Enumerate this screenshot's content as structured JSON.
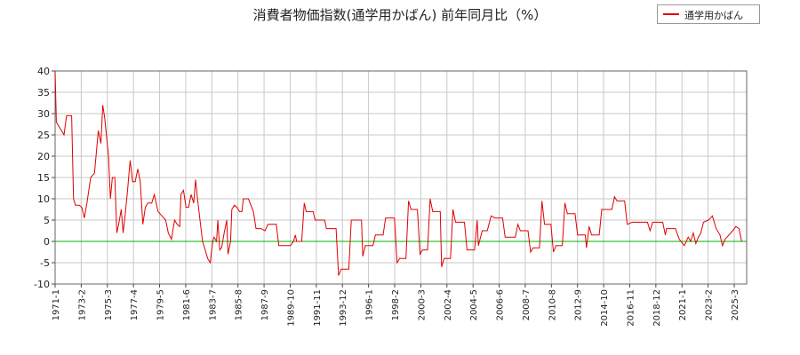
{
  "chart_data": {
    "type": "line",
    "title": "消費者物価指数(通学用かばん) 前年同月比（%）",
    "xlabel": "",
    "ylabel": "",
    "ylim": [
      -10,
      40
    ],
    "y_ticks": [
      "40",
      "35",
      "30",
      "25",
      "20",
      "15",
      "10",
      "5",
      "0",
      "-5",
      "-10"
    ],
    "x_ticks": [
      "1971-1",
      "1973-2",
      "1975-3",
      "1977-4",
      "1979-5",
      "1981-6",
      "1983-7",
      "1985-8",
      "1987-9",
      "1989-10",
      "1991-11",
      "1993-12",
      "1996-1",
      "1998-2",
      "2000-3",
      "2002-4",
      "2004-5",
      "2006-6",
      "2008-7",
      "2010-8",
      "2012-9",
      "2014-10",
      "2016-11",
      "2018-12",
      "2021-1",
      "2023-2",
      "2025-3"
    ],
    "grid": true,
    "legend_position": "top-right",
    "reference_line": {
      "y": 0,
      "color": "#00b000"
    },
    "series": [
      {
        "name": "通学用かばん",
        "color": "#e00000",
        "points": [
          [
            1971.0,
            40
          ],
          [
            1971.1,
            28
          ],
          [
            1971.3,
            27
          ],
          [
            1971.5,
            26
          ],
          [
            1971.7,
            25
          ],
          [
            1971.9,
            29.5
          ],
          [
            1972.3,
            29.5
          ],
          [
            1972.45,
            10
          ],
          [
            1972.6,
            8.5
          ],
          [
            1972.9,
            8.5
          ],
          [
            1973.1,
            8
          ],
          [
            1973.3,
            5.5
          ],
          [
            1973.5,
            9
          ],
          [
            1973.8,
            15
          ],
          [
            1974.1,
            16
          ],
          [
            1974.4,
            26
          ],
          [
            1974.6,
            23
          ],
          [
            1974.75,
            32
          ],
          [
            1974.9,
            29
          ],
          [
            1975.0,
            26
          ],
          [
            1975.2,
            20
          ],
          [
            1975.35,
            10
          ],
          [
            1975.5,
            15
          ],
          [
            1975.7,
            15
          ],
          [
            1975.85,
            2
          ],
          [
            1976.0,
            4
          ],
          [
            1976.2,
            7.5
          ],
          [
            1976.35,
            2
          ],
          [
            1976.5,
            6
          ],
          [
            1976.7,
            12
          ],
          [
            1976.9,
            19
          ],
          [
            1977.1,
            14
          ],
          [
            1977.3,
            14
          ],
          [
            1977.5,
            17
          ],
          [
            1977.7,
            14
          ],
          [
            1977.9,
            4
          ],
          [
            1978.1,
            8
          ],
          [
            1978.3,
            9
          ],
          [
            1978.6,
            9
          ],
          [
            1978.8,
            11
          ],
          [
            1979.1,
            7
          ],
          [
            1979.4,
            6
          ],
          [
            1979.7,
            5
          ],
          [
            1979.9,
            2
          ],
          [
            1980.15,
            0.5
          ],
          [
            1980.4,
            5
          ],
          [
            1980.6,
            4
          ],
          [
            1980.8,
            3.5
          ],
          [
            1980.9,
            11
          ],
          [
            1981.1,
            12
          ],
          [
            1981.3,
            8
          ],
          [
            1981.5,
            8
          ],
          [
            1981.7,
            11
          ],
          [
            1981.9,
            9
          ],
          [
            1982.05,
            14.5
          ],
          [
            1982.2,
            10
          ],
          [
            1982.4,
            5
          ],
          [
            1982.6,
            0
          ],
          [
            1982.8,
            -2
          ],
          [
            1983.0,
            -4
          ],
          [
            1983.2,
            -5
          ],
          [
            1983.4,
            0
          ],
          [
            1983.5,
            1
          ],
          [
            1983.7,
            0
          ],
          [
            1983.8,
            5
          ],
          [
            1983.95,
            -2
          ],
          [
            1984.1,
            -1.5
          ],
          [
            1984.3,
            2
          ],
          [
            1984.5,
            5
          ],
          [
            1984.6,
            -3
          ],
          [
            1984.8,
            0
          ],
          [
            1984.9,
            7.5
          ],
          [
            1985.1,
            8.5
          ],
          [
            1985.3,
            8
          ],
          [
            1985.5,
            7
          ],
          [
            1985.7,
            7
          ],
          [
            1985.8,
            10
          ],
          [
            1986.2,
            10
          ],
          [
            1986.6,
            7
          ],
          [
            1986.8,
            3
          ],
          [
            1987.0,
            3
          ],
          [
            1987.2,
            3
          ],
          [
            1987.5,
            2.5
          ],
          [
            1987.75,
            4
          ],
          [
            1988.4,
            4
          ],
          [
            1988.6,
            -1
          ],
          [
            1989.0,
            -1
          ],
          [
            1989.5,
            -1
          ],
          [
            1989.75,
            0
          ],
          [
            1989.9,
            1.5
          ],
          [
            1990.0,
            0
          ],
          [
            1990.4,
            0
          ],
          [
            1990.6,
            9
          ],
          [
            1990.75,
            7
          ],
          [
            1991.3,
            7
          ],
          [
            1991.45,
            5
          ],
          [
            1992.2,
            5
          ],
          [
            1992.35,
            3
          ],
          [
            1993.1,
            3
          ],
          [
            1993.3,
            -8
          ],
          [
            1993.5,
            -6.5
          ],
          [
            1994.1,
            -6.5
          ],
          [
            1994.3,
            5
          ],
          [
            1994.6,
            5
          ],
          [
            1995.1,
            5
          ],
          [
            1995.2,
            -3.5
          ],
          [
            1995.4,
            -1
          ],
          [
            1995.6,
            -1
          ],
          [
            1996.0,
            -1
          ],
          [
            1996.2,
            1.5
          ],
          [
            1996.8,
            1.5
          ],
          [
            1997.0,
            5.5
          ],
          [
            1997.7,
            5.5
          ],
          [
            1997.9,
            -5
          ],
          [
            1998.1,
            -4
          ],
          [
            1998.6,
            -4
          ],
          [
            1998.8,
            9.5
          ],
          [
            1999.0,
            7.5
          ],
          [
            1999.5,
            7.5
          ],
          [
            1999.7,
            -3
          ],
          [
            1999.9,
            -2
          ],
          [
            2000.3,
            -2
          ],
          [
            2000.5,
            10
          ],
          [
            2000.7,
            7
          ],
          [
            2001.3,
            7
          ],
          [
            2001.4,
            -6
          ],
          [
            2001.6,
            -4
          ],
          [
            2002.1,
            -4
          ],
          [
            2002.3,
            7.5
          ],
          [
            2002.5,
            4.5
          ],
          [
            2003.2,
            4.5
          ],
          [
            2003.4,
            -2
          ],
          [
            2004.0,
            -2
          ],
          [
            2004.2,
            5
          ],
          [
            2004.3,
            -1
          ],
          [
            2004.6,
            2.5
          ],
          [
            2005.0,
            2.5
          ],
          [
            2005.3,
            6
          ],
          [
            2005.6,
            5.5
          ],
          [
            2006.2,
            5.5
          ],
          [
            2006.4,
            1
          ],
          [
            2007.2,
            1
          ],
          [
            2007.4,
            4
          ],
          [
            2007.6,
            2.5
          ],
          [
            2008.2,
            2.5
          ],
          [
            2008.4,
            -2.5
          ],
          [
            2008.6,
            -1.5
          ],
          [
            2009.1,
            -1.5
          ],
          [
            2009.3,
            9.5
          ],
          [
            2009.5,
            4
          ],
          [
            2010.0,
            4
          ],
          [
            2010.2,
            -2.5
          ],
          [
            2010.4,
            -1
          ],
          [
            2010.9,
            -1
          ],
          [
            2011.1,
            9
          ],
          [
            2011.3,
            6.5
          ],
          [
            2011.9,
            6.5
          ],
          [
            2012.1,
            1.5
          ],
          [
            2012.7,
            1.5
          ],
          [
            2012.8,
            -1.5
          ],
          [
            2013.0,
            3.5
          ],
          [
            2013.2,
            1.5
          ],
          [
            2013.8,
            1.5
          ],
          [
            2014.0,
            7.5
          ],
          [
            2014.8,
            7.5
          ],
          [
            2015.0,
            10.5
          ],
          [
            2015.2,
            9.5
          ],
          [
            2015.8,
            9.5
          ],
          [
            2016.0,
            4
          ],
          [
            2016.4,
            4.5
          ],
          [
            2016.8,
            4.5
          ],
          [
            2017.2,
            4.5
          ],
          [
            2017.6,
            4.5
          ],
          [
            2017.8,
            2.5
          ],
          [
            2018.0,
            4.5
          ],
          [
            2018.8,
            4.5
          ],
          [
            2019.0,
            1.5
          ],
          [
            2019.1,
            3
          ],
          [
            2019.8,
            3
          ],
          [
            2020.1,
            0.5
          ],
          [
            2020.5,
            -1
          ],
          [
            2020.8,
            1
          ],
          [
            2021.0,
            0
          ],
          [
            2021.2,
            2
          ],
          [
            2021.4,
            -0.5
          ],
          [
            2021.6,
            1
          ],
          [
            2021.8,
            2
          ],
          [
            2022.0,
            4.5
          ],
          [
            2022.4,
            5
          ],
          [
            2022.7,
            6
          ],
          [
            2023.0,
            3
          ],
          [
            2023.3,
            1.5
          ],
          [
            2023.5,
            -1
          ],
          [
            2023.7,
            0.5
          ],
          [
            2024.0,
            1.5
          ],
          [
            2024.3,
            2.5
          ],
          [
            2024.55,
            3.5
          ],
          [
            2024.8,
            3
          ],
          [
            2025.0,
            0
          ]
        ]
      }
    ]
  }
}
